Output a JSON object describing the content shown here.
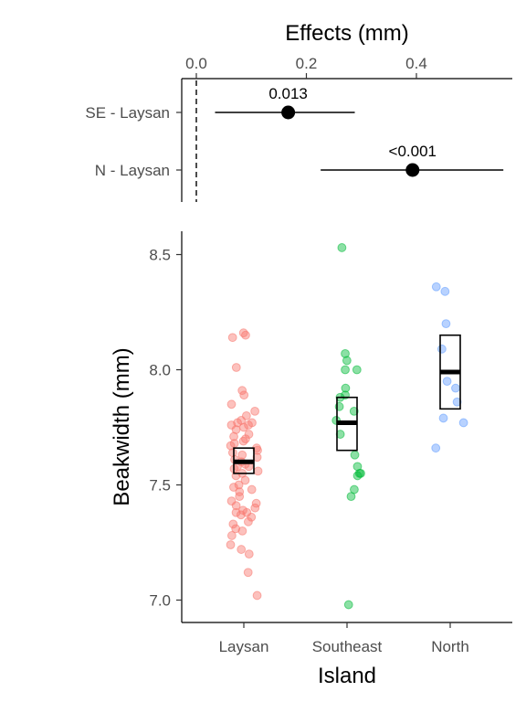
{
  "chart_data": [
    {
      "type": "scatter",
      "subtype": "effects-forest-plot",
      "title": "",
      "xlabel": "Effects (mm)",
      "xlabel_position": "top",
      "ylabel": "",
      "xlim": [
        -0.03,
        0.58
      ],
      "x_ticks": [
        0.0,
        0.2,
        0.4
      ],
      "x_tick_labels": [
        "0.0",
        "0.2",
        "0.4"
      ],
      "reference_line": {
        "x": 0.0,
        "style": "dashed"
      },
      "categories": [
        "SE - Laysan",
        "N - Laysan"
      ],
      "estimates": [
        {
          "contrast": "SE - Laysan",
          "estimate": 0.167,
          "lower": 0.034,
          "upper": 0.288,
          "p_label": "0.013"
        },
        {
          "contrast": "N - Laysan",
          "estimate": 0.393,
          "lower": 0.226,
          "upper": 0.558,
          "p_label": "<0.001"
        }
      ],
      "colors": {
        "point": "#000000"
      }
    },
    {
      "type": "scatter",
      "subtype": "jittered-points-with-mean-and-ci",
      "title": "",
      "xlabel": "Island",
      "ylabel": "Beakwidth (mm)",
      "ylim": [
        6.93,
        8.61
      ],
      "y_ticks": [
        7.0,
        7.5,
        8.0,
        8.5
      ],
      "y_tick_labels": [
        "7.0",
        "7.5",
        "8.0",
        "8.5"
      ],
      "categories": [
        "Laysan",
        "Southeast",
        "North"
      ],
      "colors": {
        "Laysan": "#F8766D",
        "Southeast": "#00BA38",
        "North": "#619CFF"
      },
      "summary": [
        {
          "group": "Laysan",
          "mean": 7.6,
          "lower": 7.55,
          "upper": 7.66
        },
        {
          "group": "Southeast",
          "mean": 7.77,
          "lower": 7.65,
          "upper": 7.88
        },
        {
          "group": "North",
          "mean": 7.99,
          "lower": 7.83,
          "upper": 8.15
        }
      ],
      "points": [
        {
          "group": "Laysan",
          "values": [
            8.16,
            8.15,
            8.14,
            8.01,
            7.91,
            7.89,
            7.85,
            7.82,
            7.8,
            7.78,
            7.77,
            7.77,
            7.76,
            7.76,
            7.75,
            7.74,
            7.72,
            7.71,
            7.7,
            7.69,
            7.68,
            7.67,
            7.66,
            7.65,
            7.64,
            7.63,
            7.62,
            7.61,
            7.6,
            7.59,
            7.58,
            7.58,
            7.57,
            7.56,
            7.55,
            7.54,
            7.52,
            7.5,
            7.49,
            7.48,
            7.47,
            7.45,
            7.43,
            7.42,
            7.41,
            7.4,
            7.39,
            7.38,
            7.38,
            7.37,
            7.36,
            7.34,
            7.33,
            7.31,
            7.3,
            7.28,
            7.24,
            7.22,
            7.2,
            7.12,
            7.02
          ]
        },
        {
          "group": "Southeast",
          "values": [
            8.53,
            8.07,
            8.04,
            8.0,
            8.0,
            7.92,
            7.89,
            7.88,
            7.84,
            7.82,
            7.78,
            7.72,
            7.63,
            7.58,
            7.55,
            7.55,
            7.54,
            7.48,
            7.45,
            6.98
          ]
        },
        {
          "group": "North",
          "values": [
            8.36,
            8.34,
            8.2,
            8.09,
            7.95,
            7.92,
            7.86,
            7.79,
            7.77,
            7.66
          ]
        }
      ]
    }
  ]
}
